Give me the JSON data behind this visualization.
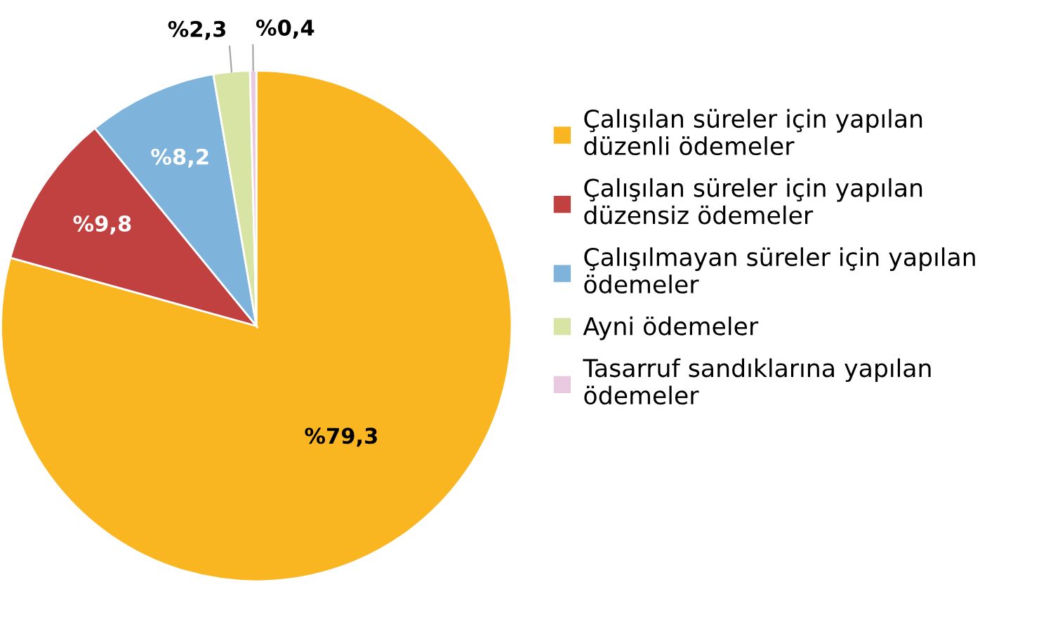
{
  "chart_data": {
    "type": "pie",
    "categories": [
      "Çalışılan süreler için yapılan düzenli ödemeler",
      "Çalışılan süreler için yapılan düzensiz ödemeler",
      "Çalışılmayan süreler için yapılan ödemeler",
      "Ayni ödemeler",
      "Tasarruf sandıklarına yapılan ödemeler"
    ],
    "values": [
      79.3,
      9.8,
      8.2,
      2.3,
      0.4
    ],
    "value_labels": [
      "%79,3",
      "%9,8",
      "%8,2",
      "%2,3",
      "%0,4"
    ],
    "colors": [
      "#f9b621",
      "#c0413f",
      "#7eb4dc",
      "#d7e4a3",
      "#e9c9df"
    ],
    "legend": "right"
  }
}
